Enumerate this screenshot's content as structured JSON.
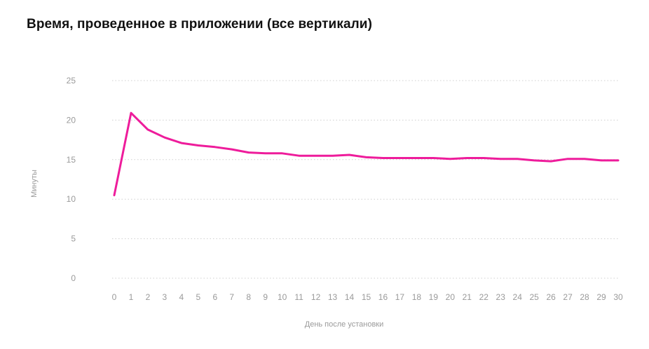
{
  "chart_data": {
    "type": "line",
    "title": "Время, проведенное в приложении (все вертикали)",
    "xlabel": "День после установки",
    "ylabel": "Минуты",
    "x": [
      0,
      1,
      2,
      3,
      4,
      5,
      6,
      7,
      8,
      9,
      10,
      11,
      12,
      13,
      14,
      15,
      16,
      17,
      18,
      19,
      20,
      21,
      22,
      23,
      24,
      25,
      26,
      27,
      28,
      29,
      30
    ],
    "y_ticks": [
      0,
      5,
      10,
      15,
      20,
      25
    ],
    "ylim": [
      0,
      25
    ],
    "grid": true,
    "series": [
      {
        "values": [
          10.5,
          20.9,
          18.8,
          17.8,
          17.1,
          16.8,
          16.6,
          16.3,
          15.9,
          15.8,
          15.8,
          15.5,
          15.5,
          15.5,
          15.6,
          15.3,
          15.2,
          15.2,
          15.2,
          15.2,
          15.1,
          15.2,
          15.2,
          15.1,
          15.1,
          14.9,
          14.8,
          15.1,
          15.1,
          14.9,
          14.9
        ],
        "color": "#ee1c9b"
      }
    ]
  }
}
